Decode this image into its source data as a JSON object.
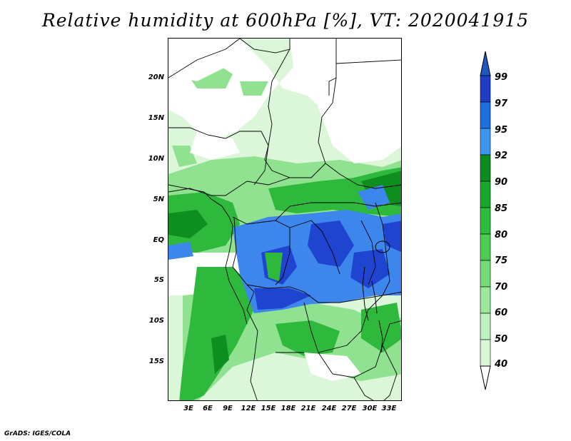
{
  "title": "Relative humidity at 600hPa [%], VT: 2020041915",
  "footer": "GrADS: IGES/COLA",
  "map": {
    "lat_labels": [
      "20N",
      "15N",
      "10N",
      "5N",
      "EQ",
      "5S",
      "10S",
      "15S"
    ],
    "lon_labels": [
      "3E",
      "6E",
      "9E",
      "12E",
      "15E",
      "18E",
      "21E",
      "24E",
      "27E",
      "30E",
      "33E"
    ]
  },
  "colorbar": {
    "levels": [
      "99",
      "97",
      "95",
      "92",
      "90",
      "85",
      "80",
      "75",
      "70",
      "60",
      "50",
      "40"
    ],
    "colors": [
      "#1e3ec8",
      "#1e6ee0",
      "#3a96ef",
      "#0b8c1c",
      "#15a82a",
      "#2cbd3c",
      "#4ccd52",
      "#74dc74",
      "#9ae89a",
      "#bdf1bd",
      "#d8f7d6",
      "#eefaee"
    ],
    "top_color": "#1e57c0"
  },
  "palette": {
    "green_light": "#dcf6da",
    "green_mid": "#90e290",
    "green_dark": "#1fa52f",
    "blue_mid": "#3c86ec",
    "blue_dark": "#1f44d0",
    "border": "#000000"
  }
}
